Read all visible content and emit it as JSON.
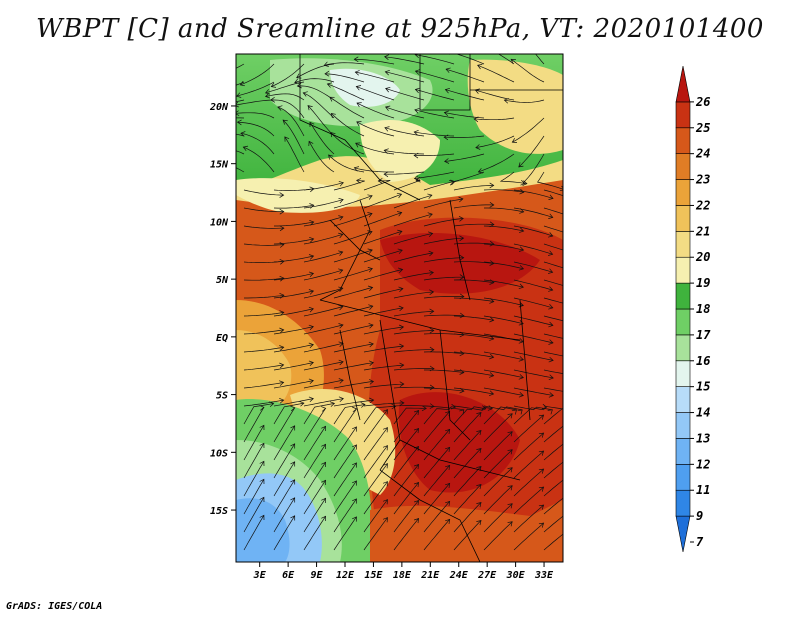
{
  "title": "WBPT [C] and Sreamline at 925hPa, VT: 2020101400",
  "footer": "GrADS: IGES/COLA",
  "map": {
    "lat_labels": [
      "20N",
      "15N",
      "10N",
      "5N",
      "EQ",
      "5S",
      "10S",
      "15S"
    ],
    "lat_values": [
      20,
      15,
      10,
      5,
      0,
      -5,
      -10,
      -15
    ],
    "lon_labels": [
      "3E",
      "6E",
      "9E",
      "12E",
      "15E",
      "18E",
      "21E",
      "24E",
      "27E",
      "30E",
      "33E"
    ],
    "lon_values": [
      3,
      6,
      9,
      12,
      15,
      18,
      21,
      24,
      27,
      30,
      33
    ],
    "lat_range": [
      -19.5,
      24.5
    ],
    "lon_range": [
      0.5,
      35
    ]
  },
  "colorbar": {
    "labels": [
      "7",
      "9",
      "11",
      "12",
      "13",
      "14",
      "15",
      "16",
      "17",
      "18",
      "19",
      "20",
      "21",
      "22",
      "23",
      "24",
      "25",
      "26"
    ],
    "colors": [
      "#1e6fd9",
      "#2f86e6",
      "#4f9ff0",
      "#6fb3f4",
      "#93c8f7",
      "#b7dcf9",
      "#e3f5ee",
      "#a8e29b",
      "#6fcf65",
      "#3fb33d",
      "#f6f0b0",
      "#f3dc84",
      "#f0c25a",
      "#eba339",
      "#e07d25",
      "#d6581a",
      "#c93213",
      "#b81610"
    ]
  },
  "legend_colors": {
    "low": "#1e6fd9",
    "high": "#b81610"
  }
}
